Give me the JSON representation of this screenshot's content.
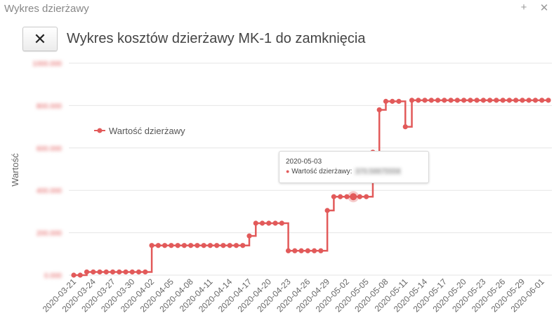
{
  "window": {
    "title": "Wykres dzierżawy",
    "maximize_icon": "plus-icon",
    "close_icon": "close-icon"
  },
  "header": {
    "close_button_icon": "close-x-icon",
    "title": "Wykres kosztów dzierżawy MK-1 do zamknięcia"
  },
  "colors": {
    "series": "#e25a5a",
    "grid": "#e6e6e6",
    "tick_text": "#666666"
  },
  "tooltip": {
    "date": "2020-05-03",
    "series_label": "Wartość dzierżawy:",
    "value": "370.58875558"
  },
  "chart_data": {
    "type": "line",
    "step": true,
    "ylabel": "Wartość",
    "xlabel": "",
    "ylim": [
      0,
      1000
    ],
    "yticks": [
      "0.000",
      "200.000",
      "400.000",
      "600.000",
      "800.000",
      "1000.000"
    ],
    "yticks_blurred": true,
    "legend": {
      "position": "left",
      "entries": [
        "Wartość dzierżawy"
      ]
    },
    "grid": true,
    "xtick_labels": [
      "2020-03-21",
      "2020-03-24",
      "2020-03-27",
      "2020-03-30",
      "2020-04-02",
      "2020-04-05",
      "2020-04-08",
      "2020-04-11",
      "2020-04-14",
      "2020-04-17",
      "2020-04-20",
      "2020-04-23",
      "2020-04-26",
      "2020-04-29",
      "2020-05-02",
      "2020-05-05",
      "2020-05-08",
      "2020-05-11",
      "2020-05-14",
      "2020-05-17",
      "2020-05-20",
      "2020-05-23",
      "2020-05-26",
      "2020-05-29",
      "2020-06-01"
    ],
    "series": [
      {
        "name": "Wartość dzierżawy",
        "x": [
          "2020-03-21",
          "2020-03-22",
          "2020-03-23",
          "2020-03-24",
          "2020-03-25",
          "2020-03-26",
          "2020-03-27",
          "2020-03-28",
          "2020-03-29",
          "2020-03-30",
          "2020-03-31",
          "2020-04-01",
          "2020-04-02",
          "2020-04-03",
          "2020-04-04",
          "2020-04-05",
          "2020-04-06",
          "2020-04-07",
          "2020-04-08",
          "2020-04-09",
          "2020-04-10",
          "2020-04-11",
          "2020-04-12",
          "2020-04-13",
          "2020-04-14",
          "2020-04-15",
          "2020-04-16",
          "2020-04-17",
          "2020-04-18",
          "2020-04-19",
          "2020-04-20",
          "2020-04-21",
          "2020-04-22",
          "2020-04-23",
          "2020-04-24",
          "2020-04-25",
          "2020-04-26",
          "2020-04-27",
          "2020-04-28",
          "2020-04-29",
          "2020-04-30",
          "2020-05-01",
          "2020-05-02",
          "2020-05-03",
          "2020-05-04",
          "2020-05-05",
          "2020-05-06",
          "2020-05-07",
          "2020-05-08",
          "2020-05-09",
          "2020-05-10",
          "2020-05-11",
          "2020-05-12",
          "2020-05-13",
          "2020-05-14",
          "2020-05-15",
          "2020-05-16",
          "2020-05-17",
          "2020-05-18",
          "2020-05-19",
          "2020-05-20",
          "2020-05-21",
          "2020-05-22",
          "2020-05-23",
          "2020-05-24",
          "2020-05-25",
          "2020-05-26",
          "2020-05-27",
          "2020-05-28",
          "2020-05-29",
          "2020-05-30",
          "2020-05-31",
          "2020-06-01",
          "2020-06-02"
        ],
        "values": [
          0,
          0,
          15,
          15,
          15,
          15,
          15,
          15,
          15,
          15,
          15,
          15,
          140,
          140,
          140,
          140,
          140,
          140,
          140,
          140,
          140,
          140,
          140,
          140,
          140,
          140,
          140,
          185,
          245,
          245,
          245,
          245,
          245,
          115,
          115,
          115,
          115,
          115,
          115,
          305,
          370,
          370,
          370,
          370,
          370,
          370,
          580,
          780,
          820,
          820,
          820,
          700,
          825,
          825,
          825,
          825,
          825,
          825,
          825,
          825,
          825,
          825,
          825,
          825,
          825,
          825,
          825,
          825,
          825,
          825,
          825,
          825,
          825,
          825
        ]
      }
    ]
  }
}
